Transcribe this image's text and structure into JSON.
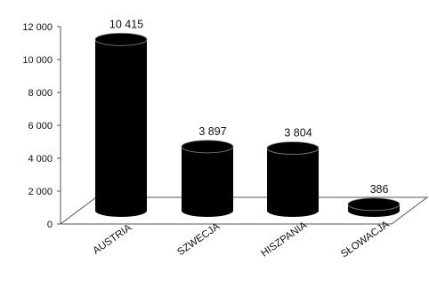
{
  "chart_data": {
    "type": "bar",
    "style": "3d-cylinder",
    "title": "",
    "xlabel": "",
    "ylabel": "",
    "categories": [
      "AUSTRIA",
      "SZWECJA",
      "HISZPANIA",
      "SŁOWACJA"
    ],
    "values": [
      10415,
      3897,
      3804,
      386
    ],
    "data_labels": [
      "10 415",
      "3 897",
      "3 804",
      "386"
    ],
    "yticks": [
      0,
      2000,
      4000,
      6000,
      8000,
      10000,
      12000
    ],
    "ytick_labels": [
      "0",
      "2 000",
      "4 000",
      "6 000",
      "8 000",
      "10 000",
      "12 000"
    ],
    "ylim": [
      0,
      12000
    ],
    "grid": false,
    "legend": "none",
    "colors": {
      "bar": "#000000",
      "floor": "#ffffff",
      "axis": "#555555"
    }
  }
}
